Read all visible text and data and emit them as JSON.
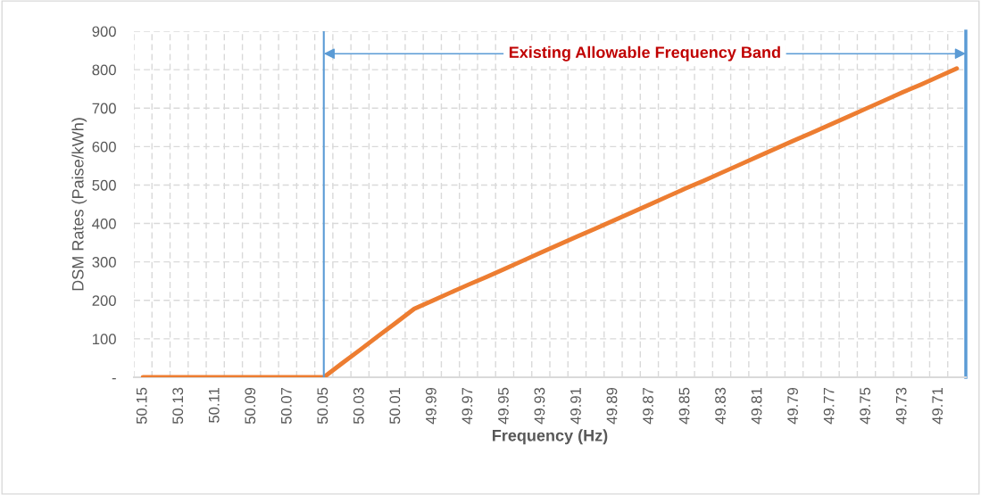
{
  "chart_data": {
    "type": "line",
    "xlabel": "Frequency (Hz)",
    "ylabel": "DSM Rates (Paise/kWh)",
    "categories": [
      "50.15",
      null,
      "50.13",
      null,
      "50.11",
      null,
      "50.09",
      null,
      "50.07",
      null,
      "50.05",
      null,
      "50.03",
      null,
      "50.01",
      null,
      "49.99",
      null,
      "49.97",
      null,
      "49.95",
      null,
      "49.93",
      null,
      "49.91",
      null,
      "49.89",
      null,
      "49.87",
      null,
      "49.85",
      null,
      "49.83",
      null,
      "49.81",
      null,
      "49.79",
      null,
      "49.77",
      null,
      "49.75",
      null,
      "49.73",
      null,
      "49.71",
      null
    ],
    "series": [
      {
        "color": "#ed7d31",
        "values": [
          0,
          0,
          0,
          0,
          0,
          0,
          0,
          0,
          0,
          0,
          0,
          36,
          71,
          107,
          142,
          178,
          199,
          220,
          241,
          261,
          282,
          303,
          324,
          345,
          366,
          386,
          407,
          428,
          449,
          470,
          491,
          511,
          532,
          553,
          574,
          595,
          616,
          636,
          657,
          678,
          699,
          720,
          741,
          761,
          782,
          803
        ]
      }
    ],
    "ylim": [
      0,
      900
    ],
    "yticks": [
      {
        "value": 0,
        "label": "-"
      },
      100,
      200,
      300,
      400,
      500,
      600,
      700,
      800,
      900
    ],
    "ref_lines": [
      {
        "axis": "x",
        "value": "50.05",
        "color": "#5b9bd5"
      }
    ],
    "annotations": [
      "Existing Allowable Frequency Band"
    ],
    "grid": true,
    "marker": "none",
    "line_style": "solid"
  }
}
